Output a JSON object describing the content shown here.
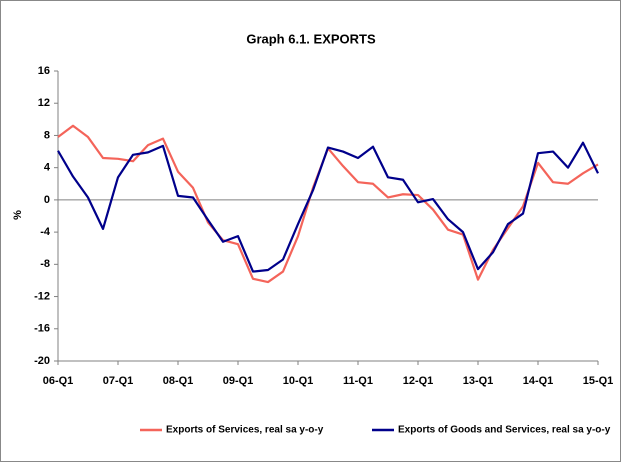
{
  "chart_data": {
    "type": "line",
    "title": "Graph 6.1. EXPORTS",
    "ylabel": "%",
    "categories": [
      "06-Q1",
      null,
      null,
      null,
      "07-Q1",
      null,
      null,
      null,
      "08-Q1",
      null,
      null,
      null,
      "09-Q1",
      null,
      null,
      null,
      "10-Q1",
      null,
      null,
      null,
      "11-Q1",
      null,
      null,
      null,
      "12-Q1",
      null,
      null,
      null,
      "13-Q1",
      null,
      null,
      null,
      "14-Q1",
      null,
      null,
      null,
      "15-Q1"
    ],
    "series": [
      {
        "name": "Exports of Services, real sa y-o-y",
        "color": "#f4645a",
        "values": [
          7.8,
          9.2,
          7.8,
          5.2,
          5.1,
          4.8,
          6.8,
          7.6,
          3.5,
          1.5,
          -2.8,
          -5.0,
          -5.5,
          -9.8,
          -10.2,
          -8.9,
          -4.5,
          1.5,
          6.4,
          4.2,
          2.2,
          2.0,
          0.3,
          0.7,
          0.6,
          -1.2,
          -3.7,
          -4.3,
          -9.9,
          -6.2,
          -3.5,
          -0.8,
          4.6,
          2.2,
          2.0,
          3.3,
          4.4
        ]
      },
      {
        "name": "Exports of Goods and Services, real sa y-o-y",
        "color": "#00008b",
        "values": [
          6.1,
          2.9,
          0.3,
          -3.6,
          2.8,
          5.6,
          5.9,
          6.7,
          0.5,
          0.3,
          -2.5,
          -5.2,
          -4.5,
          -8.9,
          -8.7,
          -7.4,
          -3.0,
          1.2,
          6.5,
          6.0,
          5.2,
          6.6,
          2.8,
          2.5,
          -0.3,
          0.1,
          -2.4,
          -4.0,
          -8.6,
          -6.5,
          -3.0,
          -1.7,
          5.8,
          6.0,
          4.0,
          7.1,
          3.3
        ]
      }
    ],
    "ylim": [
      -20,
      16
    ],
    "yticks": [
      -20,
      -16,
      -12,
      -8,
      -4,
      0,
      4,
      8,
      12,
      16
    ]
  }
}
